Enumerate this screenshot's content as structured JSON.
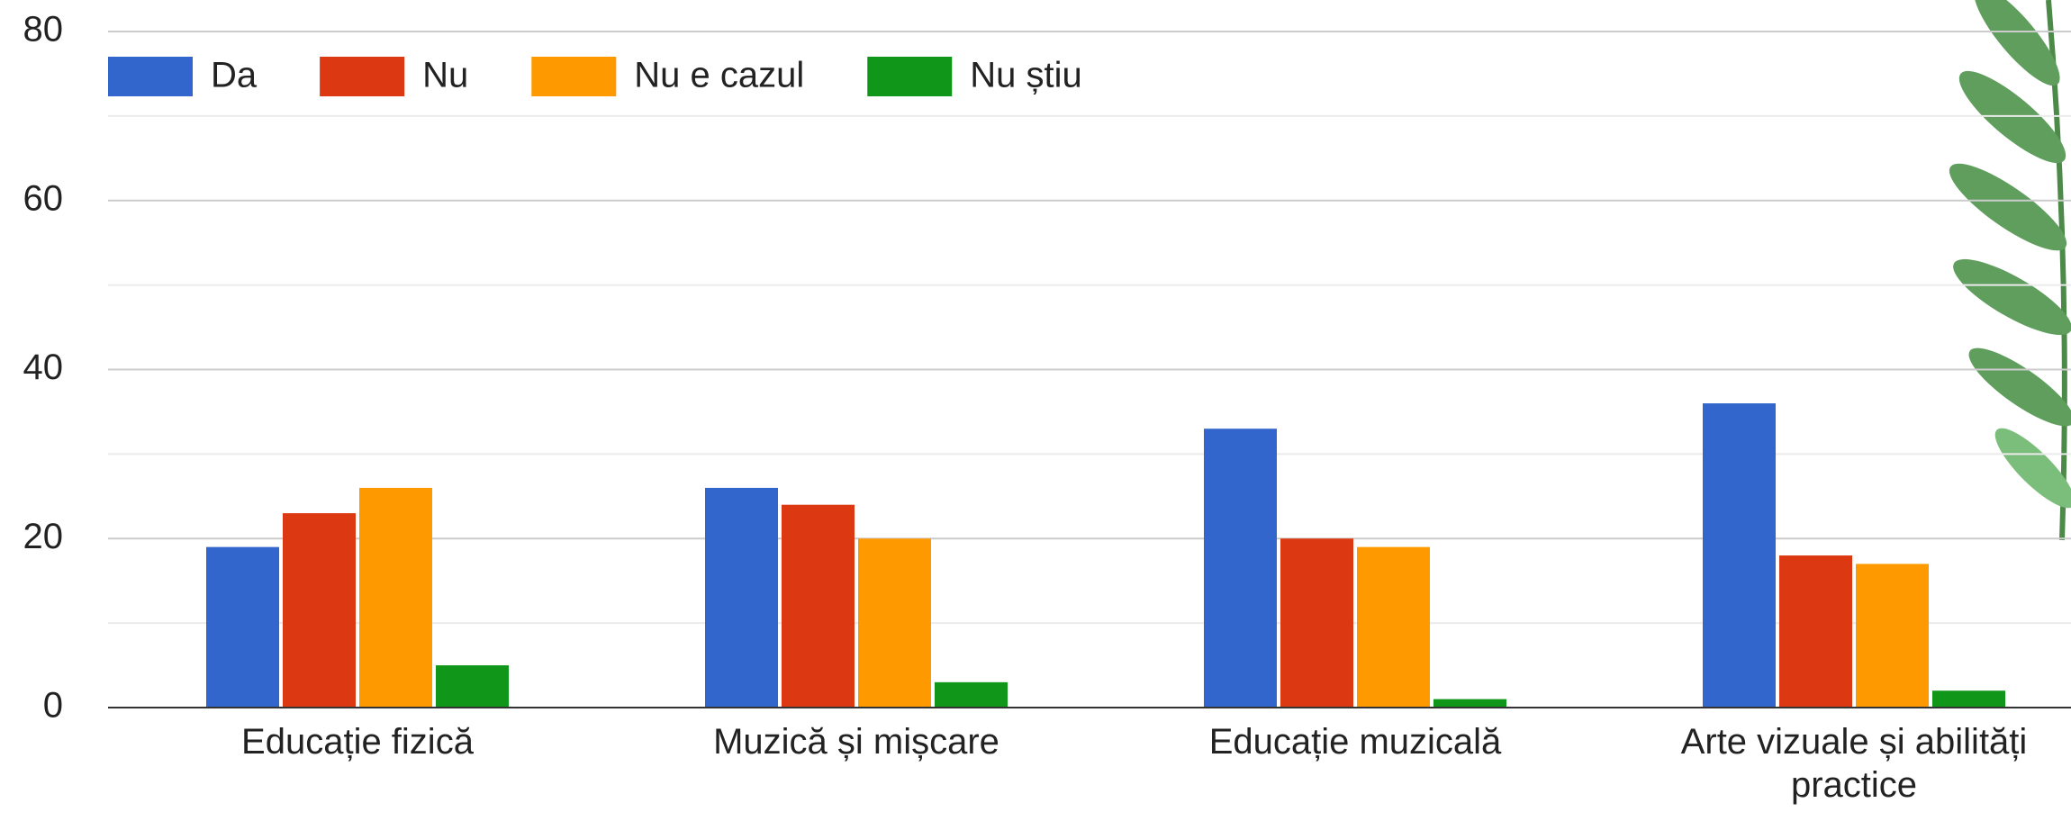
{
  "chart_data": {
    "type": "bar",
    "categories": [
      "Educație fizică",
      "Muzică și mișcare",
      "Educație muzicală",
      "Arte vizuale și abilități practice"
    ],
    "series": [
      {
        "name": "Da",
        "color": "#3366cc",
        "values": [
          19,
          26,
          33,
          36
        ]
      },
      {
        "name": "Nu",
        "color": "#dc3912",
        "values": [
          23,
          24,
          20,
          18
        ]
      },
      {
        "name": "Nu e cazul",
        "color": "#ff9900",
        "values": [
          26,
          20,
          19,
          17
        ]
      },
      {
        "name": "Nu știu",
        "color": "#109618",
        "values": [
          5,
          3,
          1,
          2
        ]
      }
    ],
    "ylim": [
      0,
      80
    ],
    "yticks": [
      0,
      20,
      40,
      60,
      80
    ],
    "grid": true,
    "legend": "top"
  }
}
